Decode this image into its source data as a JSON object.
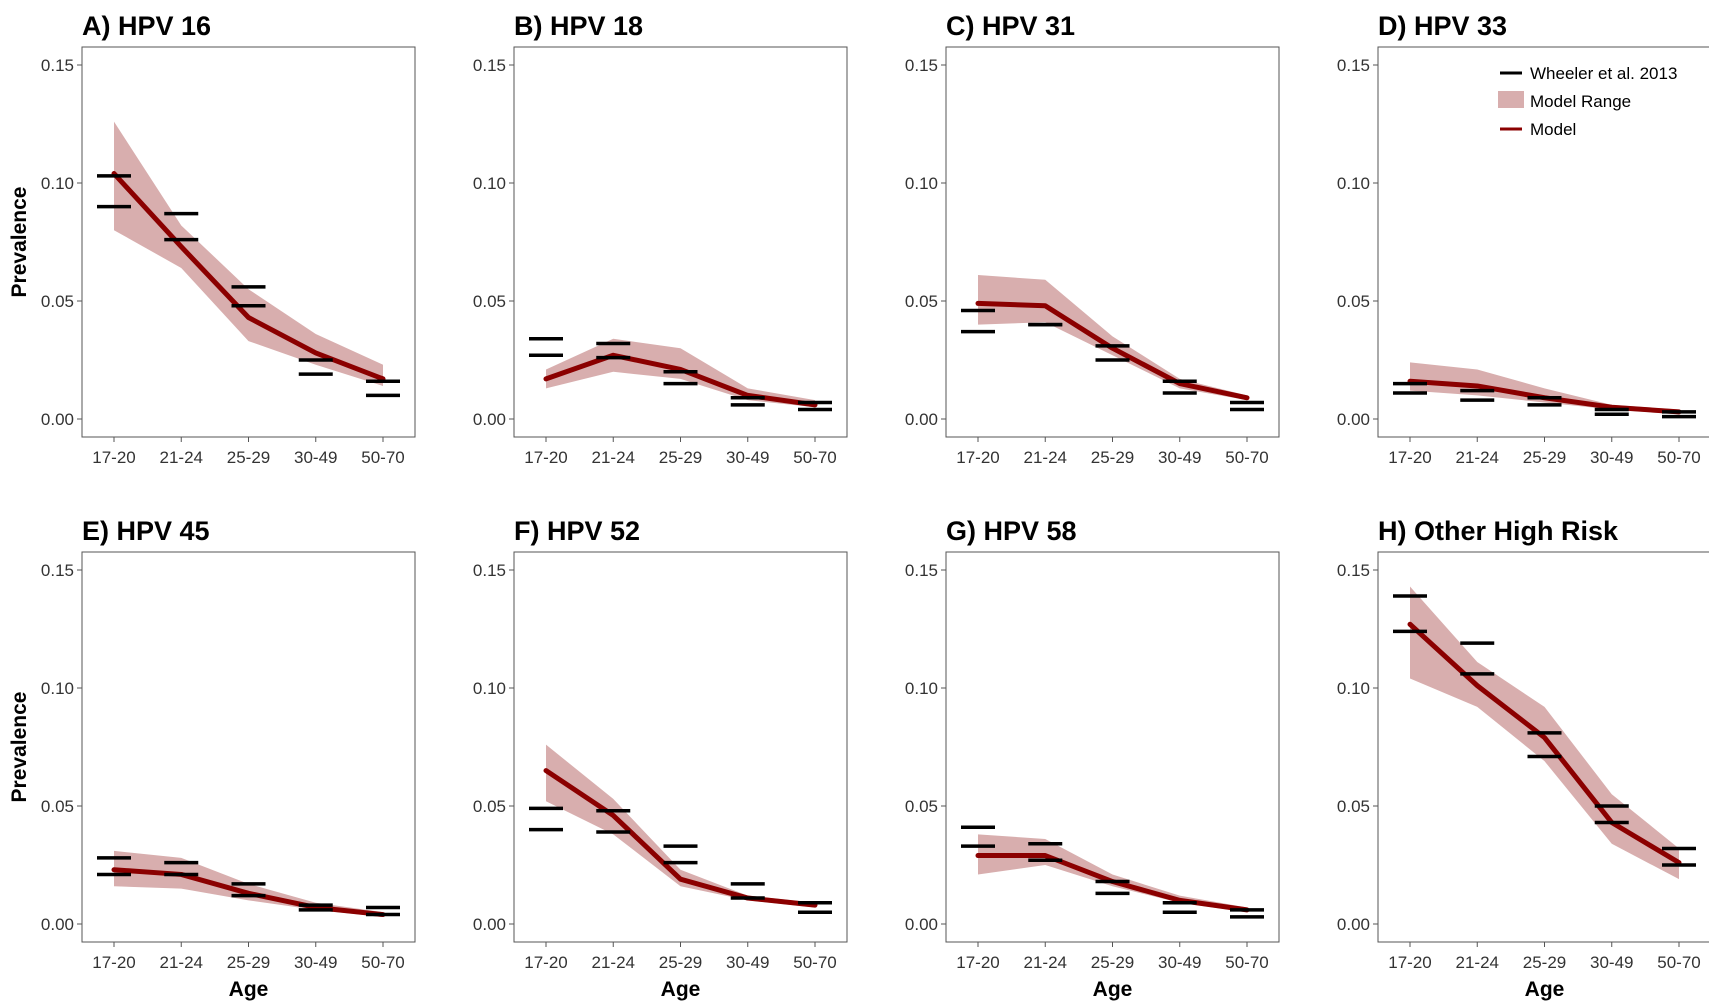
{
  "chart_data": {
    "type": "line",
    "categories": [
      "17-20",
      "21-24",
      "25-29",
      "30-49",
      "50-70"
    ],
    "xlabel": "Age",
    "ylabel": "Prevalence",
    "ylim": [
      0,
      0.15
    ],
    "yticks": [
      "0.00",
      "0.05",
      "0.10",
      "0.15"
    ],
    "grid": false,
    "legend": {
      "placement": "top-right",
      "entries": [
        "Wheeler et al. 2013",
        "Model Range",
        "Model"
      ]
    },
    "colors": {
      "model": "#8b0000",
      "range": "#d8aeae",
      "data": "#000000"
    },
    "panels": [
      {
        "title": "A) HPV 16",
        "model": [
          0.104,
          0.073,
          0.043,
          0.028,
          0.017
        ],
        "range_low": [
          0.08,
          0.064,
          0.033,
          0.023,
          0.014
        ],
        "range_high": [
          0.126,
          0.082,
          0.055,
          0.036,
          0.023
        ],
        "wheeler_high": [
          0.103,
          0.087,
          0.056,
          0.025,
          0.016
        ],
        "wheeler_low": [
          0.09,
          0.076,
          0.048,
          0.019,
          0.01
        ]
      },
      {
        "title": "B) HPV 18",
        "model": [
          0.017,
          0.027,
          0.021,
          0.01,
          0.006
        ],
        "range_low": [
          0.013,
          0.02,
          0.017,
          0.008,
          0.005
        ],
        "range_high": [
          0.021,
          0.034,
          0.03,
          0.013,
          0.008
        ],
        "wheeler_high": [
          0.034,
          0.032,
          0.02,
          0.009,
          0.007
        ],
        "wheeler_low": [
          0.027,
          0.026,
          0.015,
          0.006,
          0.004
        ]
      },
      {
        "title": "C) HPV 31",
        "model": [
          0.049,
          0.048,
          0.03,
          0.015,
          0.009
        ],
        "range_low": [
          0.04,
          0.041,
          0.027,
          0.013,
          0.008
        ],
        "range_high": [
          0.061,
          0.059,
          0.035,
          0.017,
          0.01
        ],
        "wheeler_high": [
          0.046,
          0.04,
          0.031,
          0.016,
          0.007
        ],
        "wheeler_low": [
          0.037,
          0.04,
          0.025,
          0.011,
          0.004
        ]
      },
      {
        "title": "D) HPV 33",
        "model": [
          0.016,
          0.014,
          0.009,
          0.005,
          0.003
        ],
        "range_low": [
          0.012,
          0.01,
          0.007,
          0.004,
          0.002
        ],
        "range_high": [
          0.024,
          0.021,
          0.013,
          0.006,
          0.004
        ],
        "wheeler_high": [
          0.015,
          0.012,
          0.009,
          0.004,
          0.003
        ],
        "wheeler_low": [
          0.011,
          0.008,
          0.006,
          0.002,
          0.001
        ]
      },
      {
        "title": "E) HPV 45",
        "model": [
          0.023,
          0.021,
          0.013,
          0.007,
          0.004
        ],
        "range_low": [
          0.016,
          0.015,
          0.01,
          0.006,
          0.003
        ],
        "range_high": [
          0.031,
          0.028,
          0.017,
          0.009,
          0.005
        ],
        "wheeler_high": [
          0.028,
          0.026,
          0.017,
          0.008,
          0.007
        ],
        "wheeler_low": [
          0.021,
          0.021,
          0.012,
          0.006,
          0.004
        ]
      },
      {
        "title": "F) HPV 52",
        "model": [
          0.065,
          0.046,
          0.019,
          0.011,
          0.008
        ],
        "range_low": [
          0.052,
          0.038,
          0.016,
          0.01,
          0.007
        ],
        "range_high": [
          0.076,
          0.053,
          0.023,
          0.012,
          0.009
        ],
        "wheeler_high": [
          0.049,
          0.048,
          0.033,
          0.017,
          0.009
        ],
        "wheeler_low": [
          0.04,
          0.039,
          0.026,
          0.011,
          0.005
        ]
      },
      {
        "title": "G) HPV 58",
        "model": [
          0.029,
          0.029,
          0.018,
          0.01,
          0.006
        ],
        "range_low": [
          0.021,
          0.025,
          0.016,
          0.009,
          0.005
        ],
        "range_high": [
          0.038,
          0.036,
          0.021,
          0.012,
          0.007
        ],
        "wheeler_high": [
          0.041,
          0.034,
          0.018,
          0.009,
          0.006
        ],
        "wheeler_low": [
          0.033,
          0.027,
          0.013,
          0.005,
          0.003
        ]
      },
      {
        "title": "H) Other High Risk",
        "model": [
          0.127,
          0.101,
          0.079,
          0.043,
          0.026
        ],
        "range_low": [
          0.104,
          0.092,
          0.069,
          0.034,
          0.019
        ],
        "range_high": [
          0.143,
          0.111,
          0.092,
          0.055,
          0.032
        ],
        "wheeler_high": [
          0.139,
          0.119,
          0.081,
          0.05,
          0.032
        ],
        "wheeler_low": [
          0.124,
          0.106,
          0.071,
          0.043,
          0.025
        ]
      }
    ]
  }
}
